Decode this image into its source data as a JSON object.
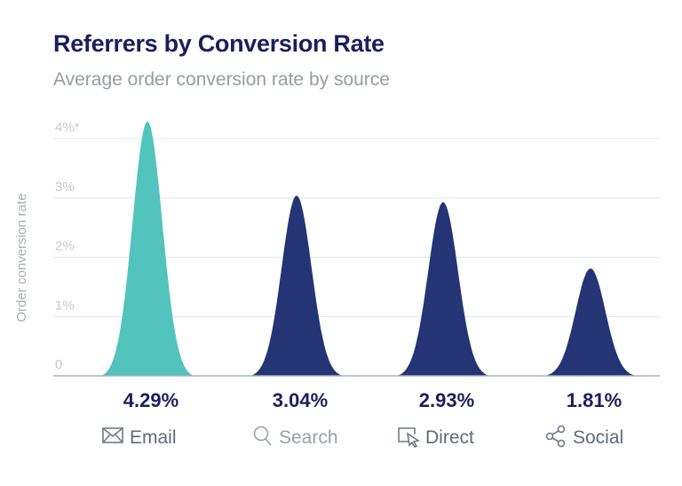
{
  "chart_data": {
    "type": "area",
    "title": "Referrers by Conversion Rate",
    "subtitle": "Average order conversion rate by source",
    "ylabel": "Order conversion rate",
    "ylim": [
      0,
      4
    ],
    "yticks": [
      "0",
      "1%",
      "2%",
      "3%",
      "4%*"
    ],
    "grid": true,
    "categories": [
      {
        "label": "Email",
        "icon": "envelope-icon",
        "value": 4.29,
        "value_label": "4.29%",
        "color": "#52c3bd",
        "label_color": "#5f6b78"
      },
      {
        "label": "Search",
        "icon": "magnifier-icon",
        "value": 3.04,
        "value_label": "3.04%",
        "color": "#243474",
        "label_color": "#98a0aa"
      },
      {
        "label": "Direct",
        "icon": "cursor-window-icon",
        "value": 2.93,
        "value_label": "2.93%",
        "color": "#243474",
        "label_color": "#5f6b78"
      },
      {
        "label": "Social",
        "icon": "share-icon",
        "value": 1.81,
        "value_label": "1.81%",
        "color": "#243474",
        "label_color": "#5f6b78"
      }
    ]
  }
}
